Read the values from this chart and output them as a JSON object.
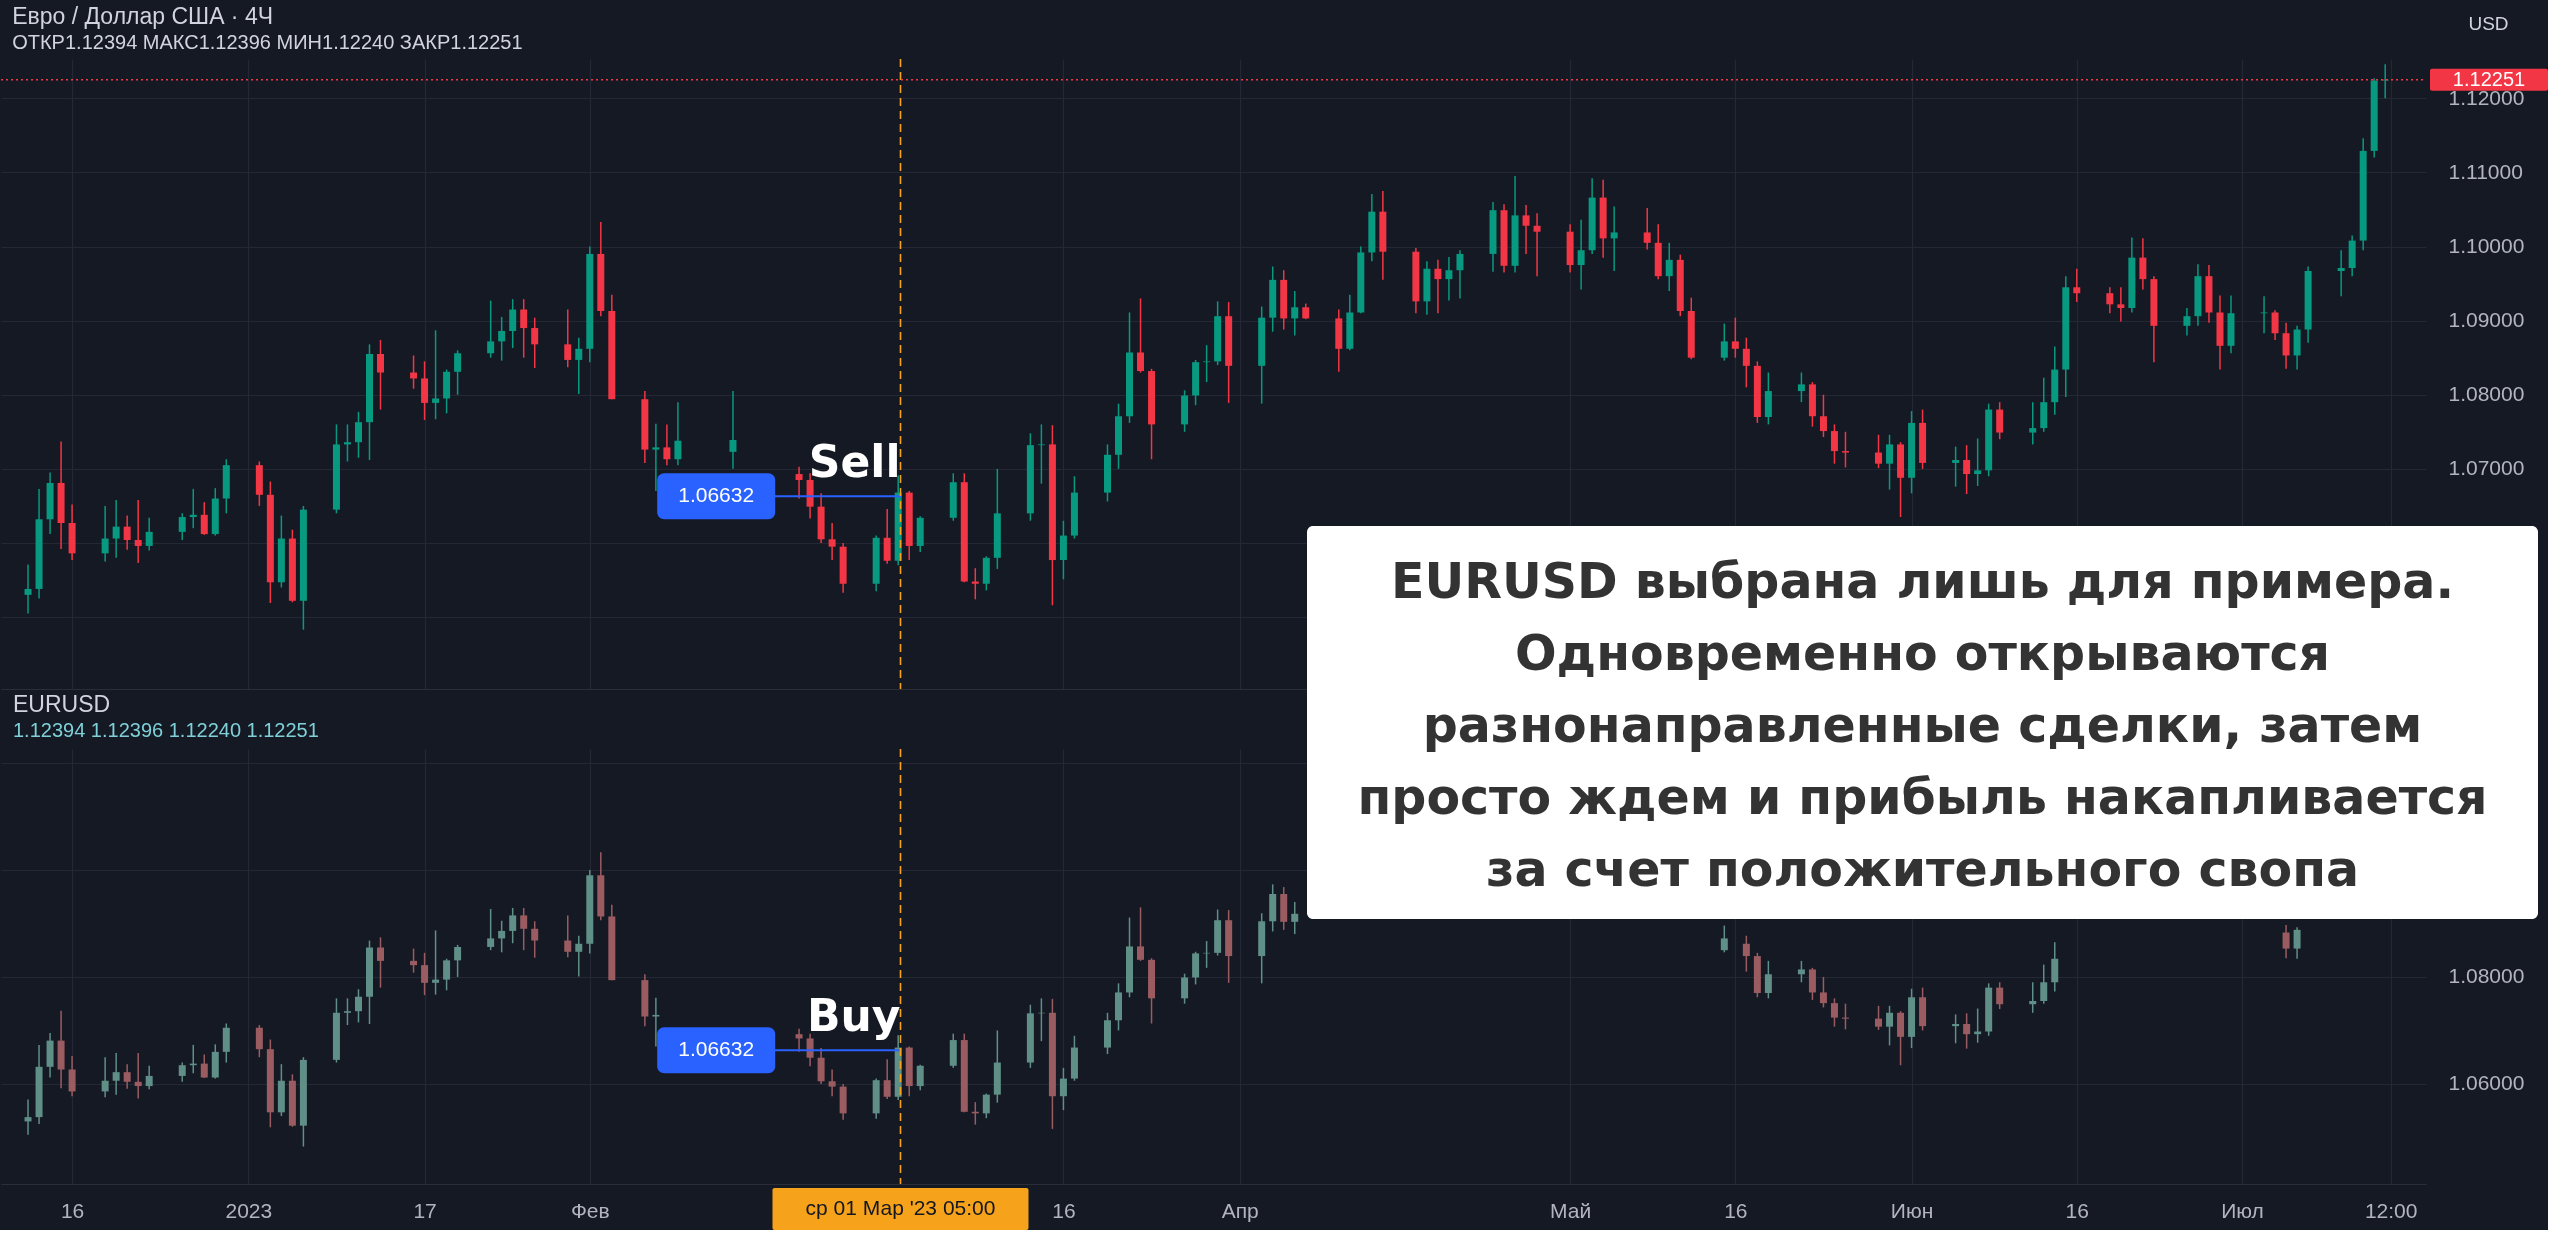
{
  "chart_data": [
    {
      "type": "candlestick",
      "title": "Евро / Доллар США · 4Ч",
      "subtitle": "ОТКР1.12394 МАКС1.12396 МИН1.12240 ЗАКР1.12251",
      "ylabel": "USD",
      "x": [
        "2022-12-12",
        "2022-12-13",
        "2022-12-14",
        "2022-12-15",
        "2022-12-16",
        "2022-12-19",
        "2022-12-20",
        "2022-12-21",
        "2022-12-22",
        "2022-12-23",
        "2022-12-26",
        "2022-12-27",
        "2022-12-28",
        "2022-12-29",
        "2022-12-30",
        "2023-01-02",
        "2023-01-03",
        "2023-01-04",
        "2023-01-05",
        "2023-01-06",
        "2023-01-09",
        "2023-01-10",
        "2023-01-11",
        "2023-01-12",
        "2023-01-13",
        "2023-01-16",
        "2023-01-17",
        "2023-01-18",
        "2023-01-19",
        "2023-01-20",
        "2023-01-23",
        "2023-01-24",
        "2023-01-25",
        "2023-01-26",
        "2023-01-27",
        "2023-01-30",
        "2023-01-31",
        "2023-02-01",
        "2023-02-02",
        "2023-02-03",
        "2023-02-06",
        "2023-02-07",
        "2023-02-08",
        "2023-02-09",
        "2023-02-14",
        "2023-02-20",
        "2023-02-21",
        "2023-02-22",
        "2023-02-23",
        "2023-02-24",
        "2023-02-27",
        "2023-02-28",
        "2023-03-01",
        "2023-03-02",
        "2023-03-03",
        "2023-03-06",
        "2023-03-07",
        "2023-03-08",
        "2023-03-09",
        "2023-03-10",
        "2023-03-13",
        "2023-03-14",
        "2023-03-15",
        "2023-03-16",
        "2023-03-17",
        "2023-03-20",
        "2023-03-21",
        "2023-03-22",
        "2023-03-23",
        "2023-03-24",
        "2023-03-27",
        "2023-03-28",
        "2023-03-29",
        "2023-03-30",
        "2023-03-31",
        "2023-04-03",
        "2023-04-04",
        "2023-04-05",
        "2023-04-06",
        "2023-04-07",
        "2023-04-10",
        "2023-04-11",
        "2023-04-12",
        "2023-04-13",
        "2023-04-14",
        "2023-04-17",
        "2023-04-18",
        "2023-04-19",
        "2023-04-20",
        "2023-04-21",
        "2023-04-24",
        "2023-04-25",
        "2023-04-26",
        "2023-04-27",
        "2023-04-28",
        "2023-05-01",
        "2023-05-02",
        "2023-05-03",
        "2023-05-04",
        "2023-05-05",
        "2023-05-08",
        "2023-05-09",
        "2023-05-10",
        "2023-05-11",
        "2023-05-12",
        "2023-05-15",
        "2023-05-16",
        "2023-05-17",
        "2023-05-18",
        "2023-05-19",
        "2023-05-22",
        "2023-05-23",
        "2023-05-24",
        "2023-05-25",
        "2023-05-26",
        "2023-05-29",
        "2023-05-30",
        "2023-05-31",
        "2023-06-01",
        "2023-06-02",
        "2023-06-05",
        "2023-06-06",
        "2023-06-07",
        "2023-06-08",
        "2023-06-09",
        "2023-06-12",
        "2023-06-13",
        "2023-06-14",
        "2023-06-15",
        "2023-06-16",
        "2023-06-19",
        "2023-06-20",
        "2023-06-21",
        "2023-06-22",
        "2023-06-23",
        "2023-06-26",
        "2023-06-27",
        "2023-06-28",
        "2023-06-29",
        "2023-06-30",
        "2023-07-03",
        "2023-07-04",
        "2023-07-05",
        "2023-07-06",
        "2023-07-07",
        "2023-07-10",
        "2023-07-11",
        "2023-07-12",
        "2023-07-13",
        "2023-07-14"
      ],
      "ohlc": [
        [
          1.053,
          1.0571,
          1.0505,
          1.0538
        ],
        [
          1.0538,
          1.0673,
          1.0525,
          1.0632
        ],
        [
          1.0632,
          1.0695,
          1.0612,
          1.0681
        ],
        [
          1.0681,
          1.0737,
          1.0592,
          1.0627
        ],
        [
          1.0627,
          1.0652,
          1.0577,
          1.0586
        ],
        [
          1.0586,
          1.065,
          1.0575,
          1.0606
        ],
        [
          1.0606,
          1.0658,
          1.058,
          1.0622
        ],
        [
          1.0622,
          1.0637,
          1.0591,
          1.0604
        ],
        [
          1.0604,
          1.0658,
          1.0573,
          1.0596
        ],
        [
          1.0596,
          1.0634,
          1.059,
          1.0615
        ],
        [
          1.0615,
          1.064,
          1.0604,
          1.0635
        ],
        [
          1.0635,
          1.0673,
          1.062,
          1.0638
        ],
        [
          1.0638,
          1.0655,
          1.0611,
          1.0612
        ],
        [
          1.0612,
          1.0674,
          1.061,
          1.066
        ],
        [
          1.066,
          1.0713,
          1.064,
          1.0705
        ],
        [
          1.0705,
          1.071,
          1.065,
          1.0665
        ],
        [
          1.0665,
          1.0683,
          1.0519,
          1.0547
        ],
        [
          1.0547,
          1.0637,
          1.054,
          1.0606
        ],
        [
          1.0606,
          1.0618,
          1.052,
          1.0522
        ],
        [
          1.0522,
          1.065,
          1.0483,
          1.0645
        ],
        [
          1.0645,
          1.076,
          1.064,
          1.0733
        ],
        [
          1.0733,
          1.076,
          1.071,
          1.0736
        ],
        [
          1.0736,
          1.0777,
          1.0715,
          1.0763
        ],
        [
          1.0763,
          1.0868,
          1.0712,
          1.0855
        ],
        [
          1.0855,
          1.0874,
          1.078,
          1.083
        ],
        [
          1.083,
          1.0853,
          1.0808,
          1.0822
        ],
        [
          1.0822,
          1.0845,
          1.0766,
          1.0789
        ],
        [
          1.0789,
          1.0887,
          1.0767,
          1.0795
        ],
        [
          1.0795,
          1.0834,
          1.0775,
          1.0831
        ],
        [
          1.0831,
          1.086,
          1.08,
          1.0856
        ],
        [
          1.0856,
          1.0927,
          1.085,
          1.0872
        ],
        [
          1.0872,
          1.0905,
          1.0846,
          1.0886
        ],
        [
          1.0886,
          1.0929,
          1.0863,
          1.0915
        ],
        [
          1.0915,
          1.0929,
          1.085,
          1.089
        ],
        [
          1.089,
          1.0904,
          1.0836,
          1.0868
        ],
        [
          1.0868,
          1.0915,
          1.0837,
          1.0847
        ],
        [
          1.0847,
          1.0877,
          1.0801,
          1.0862
        ],
        [
          1.0862,
          1.1,
          1.0844,
          1.099
        ],
        [
          1.099,
          1.1033,
          1.0906,
          1.0913
        ],
        [
          1.0913,
          1.0935,
          1.0794,
          1.0794
        ],
        [
          1.0794,
          1.0805,
          1.0708,
          1.0726
        ],
        [
          1.0726,
          1.0761,
          1.067,
          1.0729
        ],
        [
          1.0729,
          1.076,
          1.0705,
          1.0713
        ],
        [
          1.0713,
          1.079,
          1.0705,
          1.0738
        ],
        [
          1.0723,
          1.0805,
          1.07,
          1.0739
        ],
        [
          1.0693,
          1.0703,
          1.066,
          1.0685
        ],
        [
          1.0685,
          1.0694,
          1.0633,
          1.0649
        ],
        [
          1.0649,
          1.0667,
          1.06,
          1.0605
        ],
        [
          1.0605,
          1.0627,
          1.0577,
          1.0595
        ],
        [
          1.0595,
          1.06,
          1.0533,
          1.0545
        ],
        [
          1.0545,
          1.061,
          1.0535,
          1.0607
        ],
        [
          1.0607,
          1.0646,
          1.0572,
          1.0576
        ],
        [
          1.0576,
          1.0691,
          1.057,
          1.0668
        ],
        [
          1.0668,
          1.067,
          1.0577,
          1.0596
        ],
        [
          1.0596,
          1.0636,
          1.0588,
          1.0634
        ],
        [
          1.0634,
          1.0694,
          1.063,
          1.0682
        ],
        [
          1.0682,
          1.0694,
          1.0547,
          1.0548
        ],
        [
          1.0548,
          1.0566,
          1.0524,
          1.0545
        ],
        [
          1.0545,
          1.0582,
          1.0536,
          1.058
        ],
        [
          1.058,
          1.07,
          1.0565,
          1.064
        ],
        [
          1.064,
          1.0748,
          1.063,
          1.0732
        ],
        [
          1.0732,
          1.076,
          1.068,
          1.0733
        ],
        [
          1.0733,
          1.0759,
          1.0516,
          1.0577
        ],
        [
          1.0577,
          1.063,
          1.0551,
          1.061
        ],
        [
          1.061,
          1.069,
          1.0606,
          1.0668
        ],
        [
          1.0668,
          1.0733,
          1.0656,
          1.0719
        ],
        [
          1.0719,
          1.0788,
          1.07,
          1.0771
        ],
        [
          1.0771,
          1.0911,
          1.0762,
          1.0857
        ],
        [
          1.0857,
          1.093,
          1.083,
          1.0832
        ],
        [
          1.0832,
          1.0835,
          1.0713,
          1.076
        ],
        [
          1.076,
          1.0806,
          1.075,
          1.0799
        ],
        [
          1.0799,
          1.0847,
          1.0786,
          1.0844
        ],
        [
          1.0844,
          1.0867,
          1.0817,
          1.0845
        ],
        [
          1.0845,
          1.0926,
          1.084,
          1.0906
        ],
        [
          1.0906,
          1.0925,
          1.0789,
          1.0839
        ],
        [
          1.0839,
          1.0919,
          1.0788,
          1.0904
        ],
        [
          1.0904,
          1.0973,
          1.0885,
          1.0955
        ],
        [
          1.0955,
          1.0968,
          1.0888,
          1.0903
        ],
        [
          1.0903,
          1.094,
          1.088,
          1.0918
        ],
        [
          1.0918,
          1.0923,
          1.0902,
          1.0903
        ],
        [
          1.0903,
          1.0915,
          1.0831,
          1.0862
        ],
        [
          1.0862,
          1.0935,
          1.086,
          1.0911
        ],
        [
          1.0911,
          1.1,
          1.091,
          1.0992
        ],
        [
          1.0992,
          1.1071,
          1.098,
          1.1047
        ],
        [
          1.1047,
          1.1075,
          1.0955,
          1.0993
        ],
        [
          1.0993,
          1.0998,
          1.091,
          1.0926
        ],
        [
          1.0926,
          1.098,
          1.0908,
          1.097
        ],
        [
          1.097,
          1.0982,
          1.091,
          1.0956
        ],
        [
          1.0956,
          1.0986,
          1.0927,
          1.0968
        ],
        [
          1.0968,
          1.0995,
          1.093,
          1.099
        ],
        [
          1.099,
          1.106,
          1.0966,
          1.1049
        ],
        [
          1.1049,
          1.1057,
          1.0965,
          1.0974
        ],
        [
          1.0974,
          1.1095,
          1.0965,
          1.1042
        ],
        [
          1.1042,
          1.1056,
          1.099,
          1.1028
        ],
        [
          1.1028,
          1.1045,
          1.096,
          1.102
        ],
        [
          1.102,
          1.103,
          1.0965,
          1.0975
        ],
        [
          1.0975,
          1.1036,
          1.0942,
          1.0995
        ],
        [
          1.0995,
          1.1092,
          1.099,
          1.1066
        ],
        [
          1.1066,
          1.109,
          1.0985,
          1.1011
        ],
        [
          1.1011,
          1.1054,
          1.0967,
          1.1019
        ],
        [
          1.1019,
          1.1052,
          1.0996,
          1.1005
        ],
        [
          1.1005,
          1.103,
          1.0956,
          1.096
        ],
        [
          1.096,
          1.1005,
          1.094,
          1.0982
        ],
        [
          1.0982,
          1.0989,
          1.0906,
          1.0913
        ],
        [
          1.0913,
          1.0931,
          1.0848,
          1.085
        ],
        [
          1.085,
          1.0896,
          1.0846,
          1.0872
        ],
        [
          1.0872,
          1.0904,
          1.085,
          1.0862
        ],
        [
          1.0862,
          1.0877,
          1.081,
          1.0839
        ],
        [
          1.0839,
          1.0845,
          1.0762,
          1.077
        ],
        [
          1.077,
          1.083,
          1.076,
          1.0805
        ],
        [
          1.0805,
          1.083,
          1.079,
          1.0814
        ],
        [
          1.0814,
          1.0817,
          1.0757,
          1.0771
        ],
        [
          1.0771,
          1.08,
          1.0743,
          1.0751
        ],
        [
          1.0751,
          1.076,
          1.0707,
          1.0724
        ],
        [
          1.0724,
          1.075,
          1.0702,
          1.0722
        ],
        [
          1.0722,
          1.0746,
          1.0701,
          1.0707
        ],
        [
          1.0707,
          1.0746,
          1.0672,
          1.0733
        ],
        [
          1.0733,
          1.0736,
          1.0635,
          1.0688
        ],
        [
          1.0688,
          1.0778,
          1.0667,
          1.0762
        ],
        [
          1.0762,
          1.078,
          1.07,
          1.0708
        ],
        [
          1.0708,
          1.073,
          1.0676,
          1.0712
        ],
        [
          1.0712,
          1.0732,
          1.0666,
          1.0693
        ],
        [
          1.0693,
          1.0741,
          1.0677,
          1.0698
        ],
        [
          1.0698,
          1.0788,
          1.069,
          1.078
        ],
        [
          1.078,
          1.079,
          1.074,
          1.0749
        ],
        [
          1.0749,
          1.079,
          1.0733,
          1.0755
        ],
        [
          1.0755,
          1.0823,
          1.075,
          1.079
        ],
        [
          1.079,
          1.0865,
          1.0773,
          1.0834
        ],
        [
          1.0834,
          1.096,
          1.0797,
          1.0945
        ],
        [
          1.0945,
          1.097,
          1.0925,
          1.0937
        ],
        [
          1.0937,
          1.0945,
          1.091,
          1.0922
        ],
        [
          1.0922,
          1.0945,
          1.0899,
          1.0917
        ],
        [
          1.0917,
          1.1012,
          1.0911,
          1.0985
        ],
        [
          1.0985,
          1.1011,
          1.0942,
          1.0956
        ],
        [
          1.0956,
          1.096,
          1.0844,
          1.0893
        ],
        [
          1.0893,
          1.0917,
          1.088,
          1.0906
        ],
        [
          1.0906,
          1.0976,
          1.0893,
          1.096
        ],
        [
          1.096,
          1.0975,
          1.0897,
          1.0911
        ],
        [
          1.0911,
          1.0934,
          1.0834,
          1.0866
        ],
        [
          1.0866,
          1.0934,
          1.0856,
          1.091
        ],
        [
          1.091,
          1.0933,
          1.0883,
          1.0911
        ],
        [
          1.0911,
          1.0914,
          1.0874,
          1.0883
        ],
        [
          1.0883,
          1.0897,
          1.0835,
          1.0853
        ],
        [
          1.0853,
          1.0893,
          1.0834,
          1.0888
        ],
        [
          1.0888,
          1.0973,
          1.087,
          1.0967
        ],
        [
          1.0967,
          1.0995,
          1.0933,
          1.0971
        ],
        [
          1.0971,
          1.1015,
          1.096,
          1.1008
        ],
        [
          1.1008,
          1.1146,
          1.0995,
          1.1129
        ],
        [
          1.1129,
          1.1227,
          1.112,
          1.1224
        ],
        [
          1.1224,
          1.1246,
          1.12,
          1.12251
        ]
      ],
      "colors": [
        "#089981",
        "#089981",
        "#089981",
        "#f23645",
        "#f23645",
        "#089981",
        "#089981",
        "#f23645",
        "#f23645",
        "#089981",
        "#089981",
        "#089981",
        "#f23645",
        "#089981",
        "#089981",
        "#f23645",
        "#f23645",
        "#089981",
        "#f23645",
        "#089981",
        "#089981",
        "#089981",
        "#089981",
        "#089981",
        "#f23645",
        "#f23645",
        "#f23645",
        "#089981",
        "#089981",
        "#089981",
        "#089981",
        "#089981",
        "#089981",
        "#f23645",
        "#f23645",
        "#f23645",
        "#089981",
        "#089981",
        "#f23645",
        "#f23645",
        "#f23645",
        "#089981",
        "#f23645",
        "#089981",
        "#089981",
        "#f23645",
        "#f23645",
        "#f23645",
        "#f23645",
        "#f23645",
        "#089981",
        "#f23645",
        "#089981",
        "#f23645",
        "#089981",
        "#089981",
        "#f23645",
        "#f23645",
        "#089981",
        "#089981",
        "#089981",
        "#089981",
        "#f23645",
        "#089981",
        "#089981",
        "#089981",
        "#089981",
        "#089981",
        "#f23645",
        "#f23645",
        "#089981",
        "#089981",
        "#089981",
        "#089981",
        "#f23645",
        "#089981",
        "#089981",
        "#f23645",
        "#089981",
        "#f23645",
        "#f23645",
        "#089981",
        "#089981",
        "#089981",
        "#f23645",
        "#f23645",
        "#089981",
        "#f23645",
        "#089981",
        "#089981",
        "#089981",
        "#f23645",
        "#089981",
        "#f23645",
        "#f23645",
        "#f23645",
        "#089981",
        "#089981",
        "#f23645",
        "#089981",
        "#f23645",
        "#f23645",
        "#089981",
        "#f23645",
        "#f23645",
        "#089981",
        "#f23645",
        "#f23645",
        "#f23645",
        "#089981",
        "#089981",
        "#f23645",
        "#f23645",
        "#f23645",
        "#f23645",
        "#f23645",
        "#089981",
        "#f23645",
        "#089981",
        "#f23645",
        "#089981",
        "#f23645",
        "#089981",
        "#089981",
        "#f23645",
        "#089981",
        "#089981",
        "#089981",
        "#089981",
        "#f23645",
        "#f23645",
        "#f23645",
        "#089981",
        "#f23645",
        "#f23645",
        "#089981",
        "#089981",
        "#f23645",
        "#f23645",
        "#089981",
        "#089981",
        "#f23645",
        "#f23645",
        "#089981",
        "#089981",
        "#089981",
        "#089981",
        "#089981",
        "#089981",
        "#089981"
      ],
      "series": [
        {
          "type": "line",
          "x": [
            "2023-02-17T20:00",
            "2023-03-01T05:00"
          ],
          "values": [
            1.06632,
            1.06632
          ],
          "color": "#2962ff",
          "value_labels": [
            "1.06632",
            null
          ]
        }
      ],
      "annotations": [
        {
          "text": "Sell",
          "x": "2023-03-01T05:00",
          "y": 1.06632
        }
      ],
      "ref_lines": [
        {
          "axis": "x",
          "value": "2023-03-01T05:00",
          "color": "#f7a21b",
          "line_style": "dashed"
        },
        {
          "axis": "y",
          "value": 1.12251,
          "label": "1.12251",
          "color": "#f23645",
          "line_style": "dotted"
        }
      ],
      "xlim": [
        "2022-12-10",
        "2023-07-17T06:00"
      ],
      "xticks": [
        {
          "value": "2022-12-16",
          "label": null
        },
        {
          "value": "2023-01-01",
          "label": null
        },
        {
          "value": "2023-01-17",
          "label": null
        },
        {
          "value": "2023-02-01",
          "label": null
        },
        {
          "value": "2023-03-16",
          "label": null
        },
        {
          "value": "2023-04-01",
          "label": null
        },
        {
          "value": "2023-05-01",
          "label": null
        },
        {
          "value": "2023-05-16",
          "label": null
        },
        {
          "value": "2023-06-01",
          "label": null
        },
        {
          "value": "2023-06-16",
          "label": null
        },
        {
          "value": "2023-07-01",
          "label": null
        },
        {
          "value": "2023-07-14T12:00",
          "label": null
        }
      ],
      "ylim": [
        1.0403,
        1.1253
      ],
      "yticks": [
        {
          "value": 1.05,
          "label": null
        },
        {
          "value": 1.06,
          "label": null
        },
        {
          "value": 1.07,
          "label": "1.07000"
        },
        {
          "value": 1.08,
          "label": "1.08000"
        },
        {
          "value": 1.09,
          "label": "1.09000"
        },
        {
          "value": 1.1,
          "label": "1.10000"
        },
        {
          "value": 1.11,
          "label": "1.11000"
        },
        {
          "value": 1.12,
          "label": "1.12000"
        }
      ],
      "grid": true,
      "tick_labels": "y"
    },
    {
      "type": "candlestick",
      "title": "EURUSD",
      "subtitle": "1.12394 1.12396 1.12240 1.12251",
      "x": [
        "2022-12-12",
        "2022-12-13",
        "2022-12-14",
        "2022-12-15",
        "2022-12-16",
        "2022-12-19",
        "2022-12-20",
        "2022-12-21",
        "2022-12-22",
        "2022-12-23",
        "2022-12-26",
        "2022-12-27",
        "2022-12-28",
        "2022-12-29",
        "2022-12-30",
        "2023-01-02",
        "2023-01-03",
        "2023-01-04",
        "2023-01-05",
        "2023-01-06",
        "2023-01-09",
        "2023-01-10",
        "2023-01-11",
        "2023-01-12",
        "2023-01-13",
        "2023-01-16",
        "2023-01-17",
        "2023-01-18",
        "2023-01-19",
        "2023-01-20",
        "2023-01-23",
        "2023-01-24",
        "2023-01-25",
        "2023-01-26",
        "2023-01-27",
        "2023-01-30",
        "2023-01-31",
        "2023-02-01",
        "2023-02-02",
        "2023-02-03",
        "2023-02-06",
        "2023-02-07",
        "2023-02-20",
        "2023-02-21",
        "2023-02-22",
        "2023-02-23",
        "2023-02-24",
        "2023-02-27",
        "2023-02-28",
        "2023-03-01",
        "2023-03-02",
        "2023-03-03",
        "2023-03-06",
        "2023-03-07",
        "2023-03-08",
        "2023-03-09",
        "2023-03-10",
        "2023-03-13",
        "2023-03-14",
        "2023-03-15",
        "2023-03-16",
        "2023-03-17",
        "2023-03-20",
        "2023-03-21",
        "2023-03-22",
        "2023-03-23",
        "2023-03-24",
        "2023-03-27",
        "2023-03-28",
        "2023-03-29",
        "2023-03-30",
        "2023-03-31",
        "2023-04-03",
        "2023-04-04",
        "2023-04-05",
        "2023-04-06",
        "2023-05-15",
        "2023-05-17",
        "2023-05-18",
        "2023-05-19",
        "2023-05-22",
        "2023-05-23",
        "2023-05-24",
        "2023-05-25",
        "2023-05-26",
        "2023-05-29",
        "2023-05-30",
        "2023-05-31",
        "2023-06-01",
        "2023-06-02",
        "2023-06-05",
        "2023-06-06",
        "2023-06-07",
        "2023-06-08",
        "2023-06-09",
        "2023-06-12",
        "2023-06-13",
        "2023-06-14",
        "2023-07-05",
        "2023-07-06"
      ],
      "ohlc": [
        [
          1.053,
          1.0571,
          1.0505,
          1.0538
        ],
        [
          1.0538,
          1.0673,
          1.0525,
          1.0632
        ],
        [
          1.0632,
          1.0695,
          1.0612,
          1.0681
        ],
        [
          1.0681,
          1.0737,
          1.0592,
          1.0627
        ],
        [
          1.0627,
          1.0652,
          1.0577,
          1.0586
        ],
        [
          1.0586,
          1.065,
          1.0575,
          1.0606
        ],
        [
          1.0606,
          1.0658,
          1.058,
          1.0622
        ],
        [
          1.0622,
          1.0637,
          1.0591,
          1.0604
        ],
        [
          1.0604,
          1.0658,
          1.0573,
          1.0596
        ],
        [
          1.0596,
          1.0634,
          1.059,
          1.0615
        ],
        [
          1.0615,
          1.064,
          1.0604,
          1.0635
        ],
        [
          1.0635,
          1.0673,
          1.062,
          1.0638
        ],
        [
          1.0638,
          1.0655,
          1.0611,
          1.0612
        ],
        [
          1.0612,
          1.0674,
          1.061,
          1.066
        ],
        [
          1.066,
          1.0713,
          1.064,
          1.0705
        ],
        [
          1.0705,
          1.071,
          1.065,
          1.0665
        ],
        [
          1.0665,
          1.0683,
          1.0519,
          1.0547
        ],
        [
          1.0547,
          1.0637,
          1.054,
          1.0606
        ],
        [
          1.0606,
          1.0618,
          1.052,
          1.0522
        ],
        [
          1.0522,
          1.065,
          1.0483,
          1.0645
        ],
        [
          1.0645,
          1.076,
          1.064,
          1.0733
        ],
        [
          1.0733,
          1.076,
          1.071,
          1.0736
        ],
        [
          1.0736,
          1.0777,
          1.0715,
          1.0763
        ],
        [
          1.0763,
          1.0868,
          1.0712,
          1.0855
        ],
        [
          1.0855,
          1.0874,
          1.078,
          1.083
        ],
        [
          1.083,
          1.0853,
          1.0808,
          1.0822
        ],
        [
          1.0822,
          1.0845,
          1.0766,
          1.0789
        ],
        [
          1.0789,
          1.0887,
          1.0767,
          1.0795
        ],
        [
          1.0795,
          1.0834,
          1.0775,
          1.0831
        ],
        [
          1.0831,
          1.086,
          1.08,
          1.0856
        ],
        [
          1.0856,
          1.0927,
          1.085,
          1.0872
        ],
        [
          1.0872,
          1.0905,
          1.0846,
          1.0886
        ],
        [
          1.0886,
          1.0929,
          1.0863,
          1.0915
        ],
        [
          1.0915,
          1.0929,
          1.085,
          1.089
        ],
        [
          1.089,
          1.0904,
          1.0836,
          1.0868
        ],
        [
          1.0868,
          1.0915,
          1.0837,
          1.0847
        ],
        [
          1.0847,
          1.0877,
          1.0801,
          1.0862
        ],
        [
          1.0862,
          1.1,
          1.0844,
          1.099
        ],
        [
          1.099,
          1.1033,
          1.0906,
          1.0913
        ],
        [
          1.0913,
          1.0935,
          1.0794,
          1.0794
        ],
        [
          1.0794,
          1.0805,
          1.0708,
          1.0726
        ],
        [
          1.0726,
          1.0761,
          1.067,
          1.0729
        ],
        [
          1.0693,
          1.0703,
          1.066,
          1.0685
        ],
        [
          1.0685,
          1.0694,
          1.0633,
          1.0649
        ],
        [
          1.0649,
          1.0667,
          1.06,
          1.0605
        ],
        [
          1.0605,
          1.0627,
          1.0577,
          1.0595
        ],
        [
          1.0595,
          1.06,
          1.0533,
          1.0545
        ],
        [
          1.0545,
          1.061,
          1.0535,
          1.0607
        ],
        [
          1.0607,
          1.0646,
          1.0572,
          1.0576
        ],
        [
          1.0576,
          1.0691,
          1.057,
          1.0668
        ],
        [
          1.0668,
          1.067,
          1.0577,
          1.0596
        ],
        [
          1.0596,
          1.0636,
          1.0588,
          1.0634
        ],
        [
          1.0634,
          1.0694,
          1.063,
          1.0682
        ],
        [
          1.0682,
          1.0694,
          1.0547,
          1.0548
        ],
        [
          1.0548,
          1.0566,
          1.0524,
          1.0545
        ],
        [
          1.0545,
          1.0582,
          1.0536,
          1.058
        ],
        [
          1.058,
          1.07,
          1.0565,
          1.064
        ],
        [
          1.064,
          1.0748,
          1.063,
          1.0732
        ],
        [
          1.0732,
          1.076,
          1.068,
          1.0733
        ],
        [
          1.0733,
          1.0759,
          1.0516,
          1.0577
        ],
        [
          1.0577,
          1.063,
          1.0551,
          1.061
        ],
        [
          1.061,
          1.069,
          1.0606,
          1.0668
        ],
        [
          1.0668,
          1.0733,
          1.0656,
          1.0719
        ],
        [
          1.0719,
          1.0788,
          1.07,
          1.0771
        ],
        [
          1.0771,
          1.0911,
          1.0762,
          1.0857
        ],
        [
          1.0857,
          1.093,
          1.083,
          1.0832
        ],
        [
          1.0832,
          1.0835,
          1.0713,
          1.076
        ],
        [
          1.076,
          1.0806,
          1.075,
          1.0799
        ],
        [
          1.0799,
          1.0847,
          1.0786,
          1.0844
        ],
        [
          1.0844,
          1.0867,
          1.0817,
          1.0845
        ],
        [
          1.0845,
          1.0926,
          1.084,
          1.0906
        ],
        [
          1.0906,
          1.0925,
          1.0789,
          1.0839
        ],
        [
          1.0839,
          1.0919,
          1.0788,
          1.0904
        ],
        [
          1.0904,
          1.0973,
          1.0885,
          1.0955
        ],
        [
          1.0955,
          1.0968,
          1.0888,
          1.0903
        ],
        [
          1.0903,
          1.094,
          1.088,
          1.0918
        ],
        [
          1.085,
          1.0896,
          1.0846,
          1.0872
        ],
        [
          1.0862,
          1.0877,
          1.081,
          1.0839
        ],
        [
          1.0839,
          1.0845,
          1.0762,
          1.077
        ],
        [
          1.077,
          1.083,
          1.076,
          1.0805
        ],
        [
          1.0805,
          1.083,
          1.079,
          1.0814
        ],
        [
          1.0814,
          1.0817,
          1.0757,
          1.0771
        ],
        [
          1.0771,
          1.08,
          1.0743,
          1.0751
        ],
        [
          1.0751,
          1.076,
          1.0707,
          1.0724
        ],
        [
          1.0724,
          1.075,
          1.0702,
          1.0722
        ],
        [
          1.0722,
          1.0746,
          1.0701,
          1.0707
        ],
        [
          1.0707,
          1.0746,
          1.0672,
          1.0733
        ],
        [
          1.0733,
          1.0736,
          1.0635,
          1.0688
        ],
        [
          1.0688,
          1.0778,
          1.0667,
          1.0762
        ],
        [
          1.0762,
          1.078,
          1.07,
          1.0708
        ],
        [
          1.0708,
          1.073,
          1.0676,
          1.0712
        ],
        [
          1.0712,
          1.0732,
          1.0666,
          1.0693
        ],
        [
          1.0693,
          1.0741,
          1.0677,
          1.0698
        ],
        [
          1.0698,
          1.0788,
          1.069,
          1.078
        ],
        [
          1.078,
          1.079,
          1.074,
          1.0749
        ],
        [
          1.0749,
          1.079,
          1.0733,
          1.0755
        ],
        [
          1.0755,
          1.0823,
          1.075,
          1.079
        ],
        [
          1.079,
          1.0865,
          1.0773,
          1.0834
        ],
        [
          1.0883,
          1.0897,
          1.0835,
          1.0853
        ],
        [
          1.0853,
          1.0893,
          1.0834,
          1.0888
        ]
      ],
      "colors": [
        "#5f8f86",
        "#5f8f86",
        "#5f8f86",
        "#9a5c61",
        "#9a5c61",
        "#5f8f86",
        "#5f8f86",
        "#9a5c61",
        "#9a5c61",
        "#5f8f86",
        "#5f8f86",
        "#5f8f86",
        "#9a5c61",
        "#5f8f86",
        "#5f8f86",
        "#9a5c61",
        "#9a5c61",
        "#5f8f86",
        "#9a5c61",
        "#5f8f86",
        "#5f8f86",
        "#5f8f86",
        "#5f8f86",
        "#5f8f86",
        "#9a5c61",
        "#9a5c61",
        "#9a5c61",
        "#5f8f86",
        "#5f8f86",
        "#5f8f86",
        "#5f8f86",
        "#5f8f86",
        "#5f8f86",
        "#9a5c61",
        "#9a5c61",
        "#9a5c61",
        "#5f8f86",
        "#5f8f86",
        "#9a5c61",
        "#9a5c61",
        "#9a5c61",
        "#5f8f86",
        "#9a5c61",
        "#9a5c61",
        "#9a5c61",
        "#9a5c61",
        "#9a5c61",
        "#5f8f86",
        "#9a5c61",
        "#5f8f86",
        "#9a5c61",
        "#5f8f86",
        "#5f8f86",
        "#9a5c61",
        "#9a5c61",
        "#5f8f86",
        "#5f8f86",
        "#5f8f86",
        "#5f8f86",
        "#9a5c61",
        "#5f8f86",
        "#5f8f86",
        "#5f8f86",
        "#5f8f86",
        "#5f8f86",
        "#9a5c61",
        "#9a5c61",
        "#5f8f86",
        "#5f8f86",
        "#5f8f86",
        "#5f8f86",
        "#9a5c61",
        "#5f8f86",
        "#5f8f86",
        "#9a5c61",
        "#5f8f86",
        "#5f8f86",
        "#9a5c61",
        "#9a5c61",
        "#5f8f86",
        "#5f8f86",
        "#9a5c61",
        "#9a5c61",
        "#9a5c61",
        "#9a5c61",
        "#9a5c61",
        "#5f8f86",
        "#9a5c61",
        "#5f8f86",
        "#9a5c61",
        "#5f8f86",
        "#9a5c61",
        "#5f8f86",
        "#5f8f86",
        "#9a5c61",
        "#5f8f86",
        "#5f8f86",
        "#5f8f86",
        "#9a5c61",
        "#5f8f86"
      ],
      "series": [
        {
          "type": "line",
          "x": [
            "2023-02-17T20:00",
            "2023-03-01T05:00"
          ],
          "values": [
            1.06632,
            1.06632
          ],
          "color": "#2962ff",
          "value_labels": [
            "1.06632",
            null
          ]
        }
      ],
      "annotations": [
        {
          "text": "Buy",
          "x": "2023-03-01T05:00",
          "y": 1.06632
        },
        "EURUSD выбрана лишь для примера. Одновременно открываются разнонаправленные сделки, затем просто ждем и прибыль накапливается за счет положительного свопа"
      ],
      "ref_lines": [
        {
          "axis": "x",
          "value": "2023-03-01T05:00",
          "label": "ср 01 Мар '23 05:00",
          "color": "#f7a21b",
          "line_style": "dashed"
        }
      ],
      "xlim": [
        "2022-12-10",
        "2023-07-17T06:00"
      ],
      "xticks": [
        {
          "value": "2022-12-16",
          "label": "16"
        },
        {
          "value": "2023-01-01",
          "label": "2023"
        },
        {
          "value": "2023-01-17",
          "label": "17"
        },
        {
          "value": "2023-02-01",
          "label": "Фев"
        },
        {
          "value": "2023-03-16",
          "label": "16"
        },
        {
          "value": "2023-04-01",
          "label": "Апр"
        },
        {
          "value": "2023-05-01",
          "label": "Май"
        },
        {
          "value": "2023-05-16",
          "label": "16"
        },
        {
          "value": "2023-06-01",
          "label": "Июн"
        },
        {
          "value": "2023-06-16",
          "label": "16"
        },
        {
          "value": "2023-07-01",
          "label": "Июл"
        },
        {
          "value": "2023-07-14T12:00",
          "label": "12:00"
        }
      ],
      "ylim": [
        1.0413,
        1.1226
      ],
      "yticks": [
        {
          "value": 1.06,
          "label": "1.06000"
        },
        {
          "value": 1.08,
          "label": "1.08000"
        },
        {
          "value": 1.1,
          "label": null
        },
        {
          "value": 1.12,
          "label": null
        }
      ],
      "grid": true
    }
  ]
}
